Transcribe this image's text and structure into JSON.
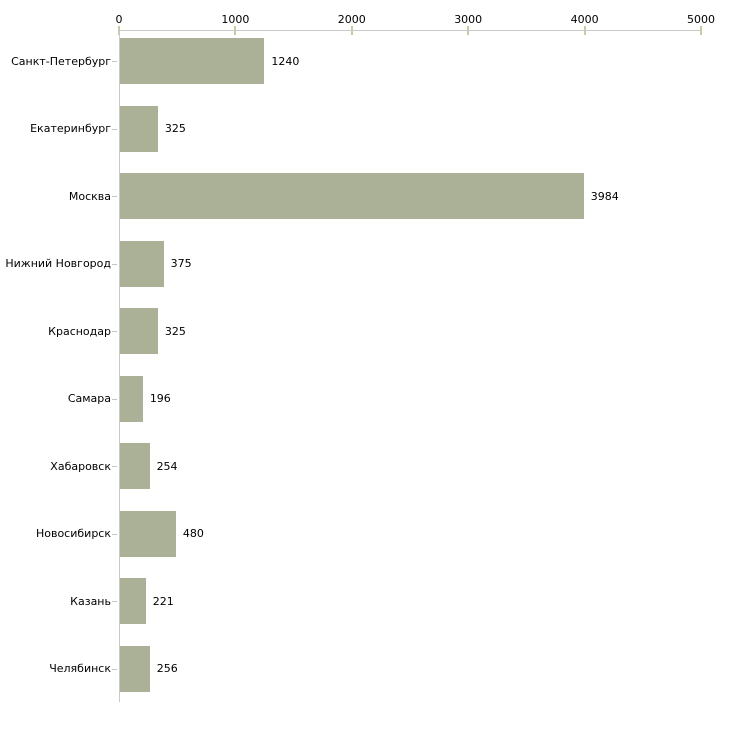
{
  "chart_data": {
    "type": "bar",
    "orientation": "horizontal",
    "title": "",
    "xlabel": "",
    "ylabel": "",
    "categories": [
      "Санкт-Петербург",
      "Екатеринбург",
      "Москва",
      "Нижний Новгород",
      "Краснодар",
      "Самара",
      "Хабаровск",
      "Новосибирск",
      "Казань",
      "Челябинск"
    ],
    "values": [
      1240,
      325,
      3984,
      375,
      325,
      196,
      254,
      480,
      221,
      256
    ],
    "value_labels": [
      "1240",
      "325",
      "3984",
      "375",
      "325",
      "196",
      "254",
      "480",
      "221",
      "256"
    ],
    "xlim": [
      0,
      5000
    ],
    "x_ticks": [
      0,
      1000,
      2000,
      3000,
      4000,
      5000
    ],
    "x_tick_labels": [
      "0",
      "1000",
      "2000",
      "3000",
      "4000",
      "5000"
    ],
    "grid": false,
    "legend": null,
    "axis_position": "top",
    "colors": {
      "bar": "#abb196",
      "axis_line": "#c9c9c9",
      "x_tick_mark": "#cbc9a0",
      "y_tick_mark": "#c4c4c4",
      "text": "#000000",
      "background": "#ffffff"
    }
  }
}
